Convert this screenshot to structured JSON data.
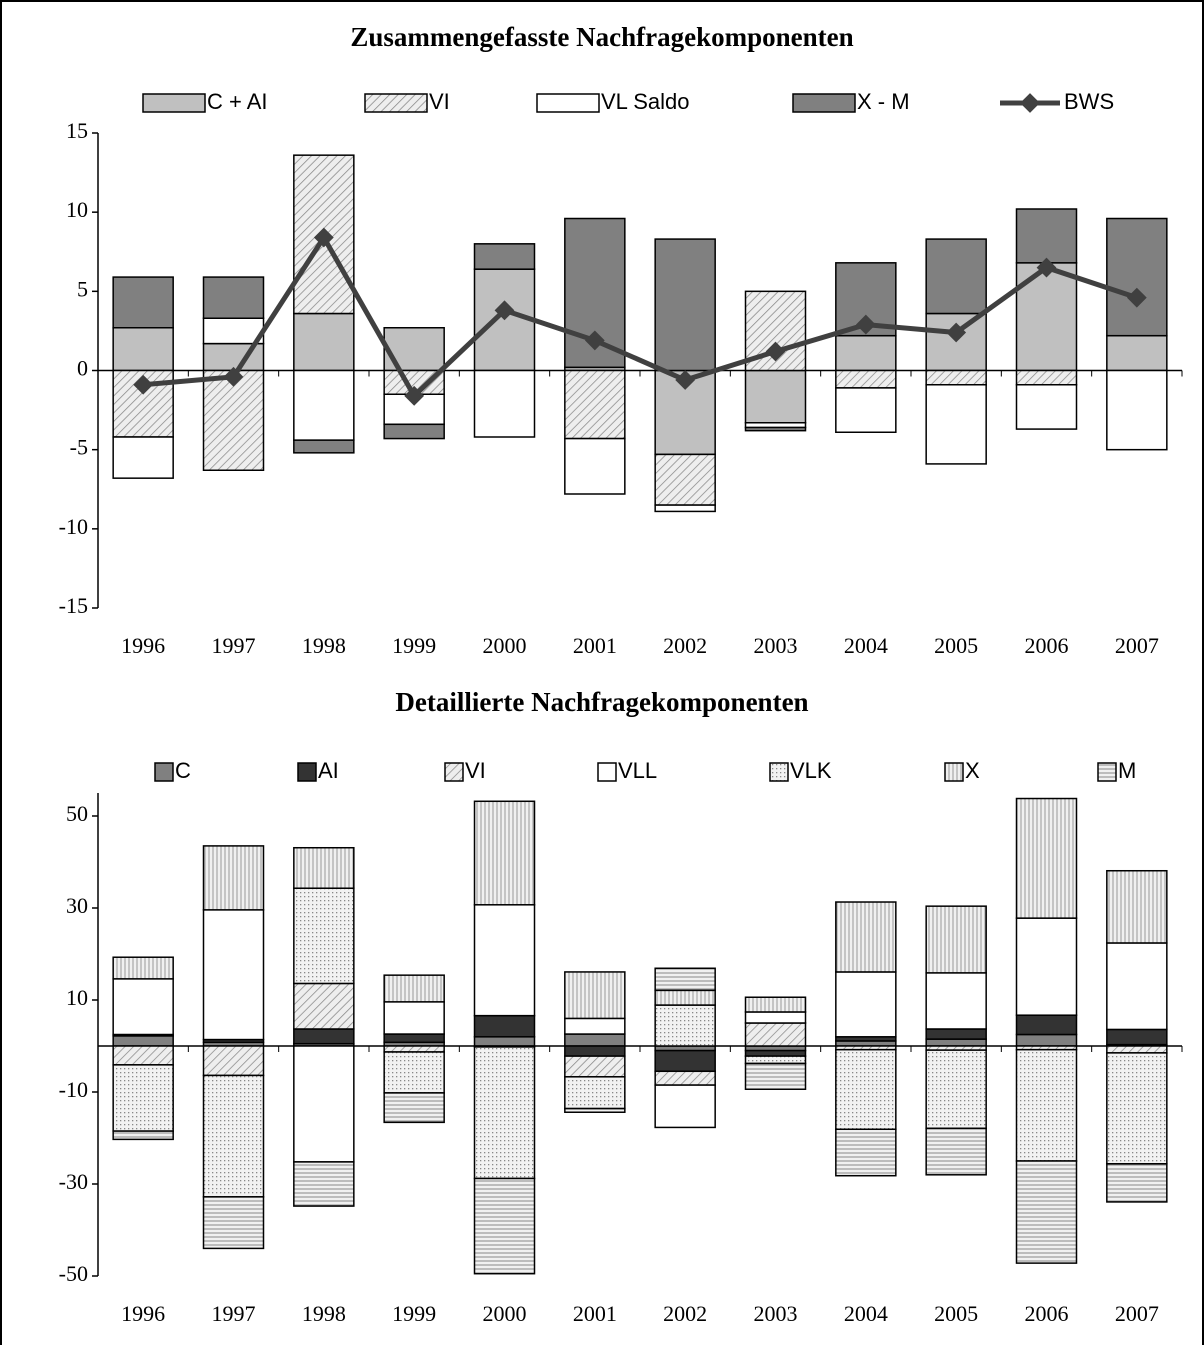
{
  "chart_data": [
    {
      "type": "bar",
      "stacked": true,
      "title": "Zusammengefasste Nachfragekomponenten",
      "categories": [
        "1996",
        "1997",
        "1998",
        "1999",
        "2000",
        "2001",
        "2002",
        "2003",
        "2004",
        "2005",
        "2006",
        "2007"
      ],
      "ylim": [
        -15,
        15
      ],
      "yticks": [
        -15,
        -10,
        -5,
        0,
        5,
        10,
        15
      ],
      "series": [
        {
          "name": "C + AI",
          "color": "#c0c0c0",
          "pattern": "solid",
          "values": [
            2.7,
            1.7,
            3.6,
            2.7,
            6.4,
            0.2,
            -5.3,
            -3.3,
            2.2,
            3.6,
            6.8,
            2.2
          ]
        },
        {
          "name": "VI",
          "color": "#e0e0e0",
          "pattern": "diagonal",
          "values": [
            -4.2,
            -6.3,
            10.0,
            -1.5,
            0,
            -4.3,
            -3.2,
            5.0,
            -1.1,
            -0.9,
            -0.9,
            0
          ]
        },
        {
          "name": "VL Saldo",
          "color": "#ffffff",
          "pattern": "solid",
          "values": [
            -2.6,
            1.6,
            -4.4,
            -1.9,
            -4.2,
            -3.5,
            -0.4,
            -0.3,
            -2.8,
            -5.0,
            -2.8,
            -5.0
          ]
        },
        {
          "name": "X - M",
          "color": "#808080",
          "pattern": "solid",
          "values": [
            3.2,
            2.6,
            -0.8,
            -0.9,
            1.6,
            9.4,
            8.3,
            -0.2,
            4.6,
            4.7,
            3.4,
            7.4
          ]
        },
        {
          "name": "BWS",
          "type": "line",
          "color": "#404040",
          "values": [
            -0.9,
            -0.4,
            8.4,
            -1.6,
            3.8,
            1.9,
            -0.6,
            1.2,
            2.9,
            2.4,
            6.5,
            4.6
          ]
        }
      ]
    },
    {
      "type": "bar",
      "stacked": true,
      "title": "Detaillierte Nachfragekomponenten",
      "categories": [
        "1996",
        "1997",
        "1998",
        "1999",
        "2000",
        "2001",
        "2002",
        "2003",
        "2004",
        "2005",
        "2006",
        "2007"
      ],
      "ylim": [
        -50,
        55
      ],
      "yticks": [
        -50,
        -30,
        -10,
        10,
        30,
        50
      ],
      "series": [
        {
          "name": "C",
          "color": "#808080",
          "pattern": "solid",
          "values": [
            2.2,
            0.8,
            0.5,
            0.8,
            2.0,
            2.6,
            -1.0,
            -1.0,
            1.1,
            1.5,
            2.5,
            0.3
          ]
        },
        {
          "name": "AI",
          "color": "#333333",
          "pattern": "solid",
          "values": [
            0.3,
            0.6,
            3.2,
            1.8,
            4.6,
            -2.2,
            -4.5,
            -1.2,
            0.9,
            2.2,
            4.2,
            3.3
          ]
        },
        {
          "name": "VI",
          "color": "#e0e0e0",
          "pattern": "diagonal",
          "values": [
            -4.1,
            -6.4,
            9.9,
            -1.3,
            -0.2,
            -4.5,
            -3.0,
            5.0,
            -0.8,
            -0.9,
            -0.8,
            -1.5
          ]
        },
        {
          "name": "VLL",
          "color": "#ffffff",
          "pattern": "solid",
          "values": [
            12.1,
            28.2,
            -25.2,
            7.0,
            24.1,
            3.4,
            -9.2,
            2.4,
            14.1,
            12.2,
            21.1,
            18.8
          ]
        },
        {
          "name": "VLK",
          "color": "#e8e8e8",
          "pattern": "dots",
          "values": [
            -14.4,
            -26.4,
            20.7,
            -8.9,
            -28.6,
            -6.9,
            8.9,
            -1.6,
            -17.3,
            -17.0,
            -24.2,
            -24.1
          ]
        },
        {
          "name": "X",
          "color": "#d8d8d8",
          "pattern": "vertical",
          "values": [
            4.7,
            13.9,
            8.8,
            5.8,
            22.5,
            10.1,
            3.2,
            3.2,
            15.2,
            14.5,
            26.0,
            15.7
          ]
        },
        {
          "name": "M",
          "color": "#d0d0d0",
          "pattern": "horizontal",
          "values": [
            -1.8,
            -11.2,
            -9.6,
            -6.4,
            -20.7,
            -0.8,
            4.8,
            -5.6,
            -10.1,
            -10.1,
            -22.2,
            -8.3
          ]
        }
      ]
    }
  ]
}
